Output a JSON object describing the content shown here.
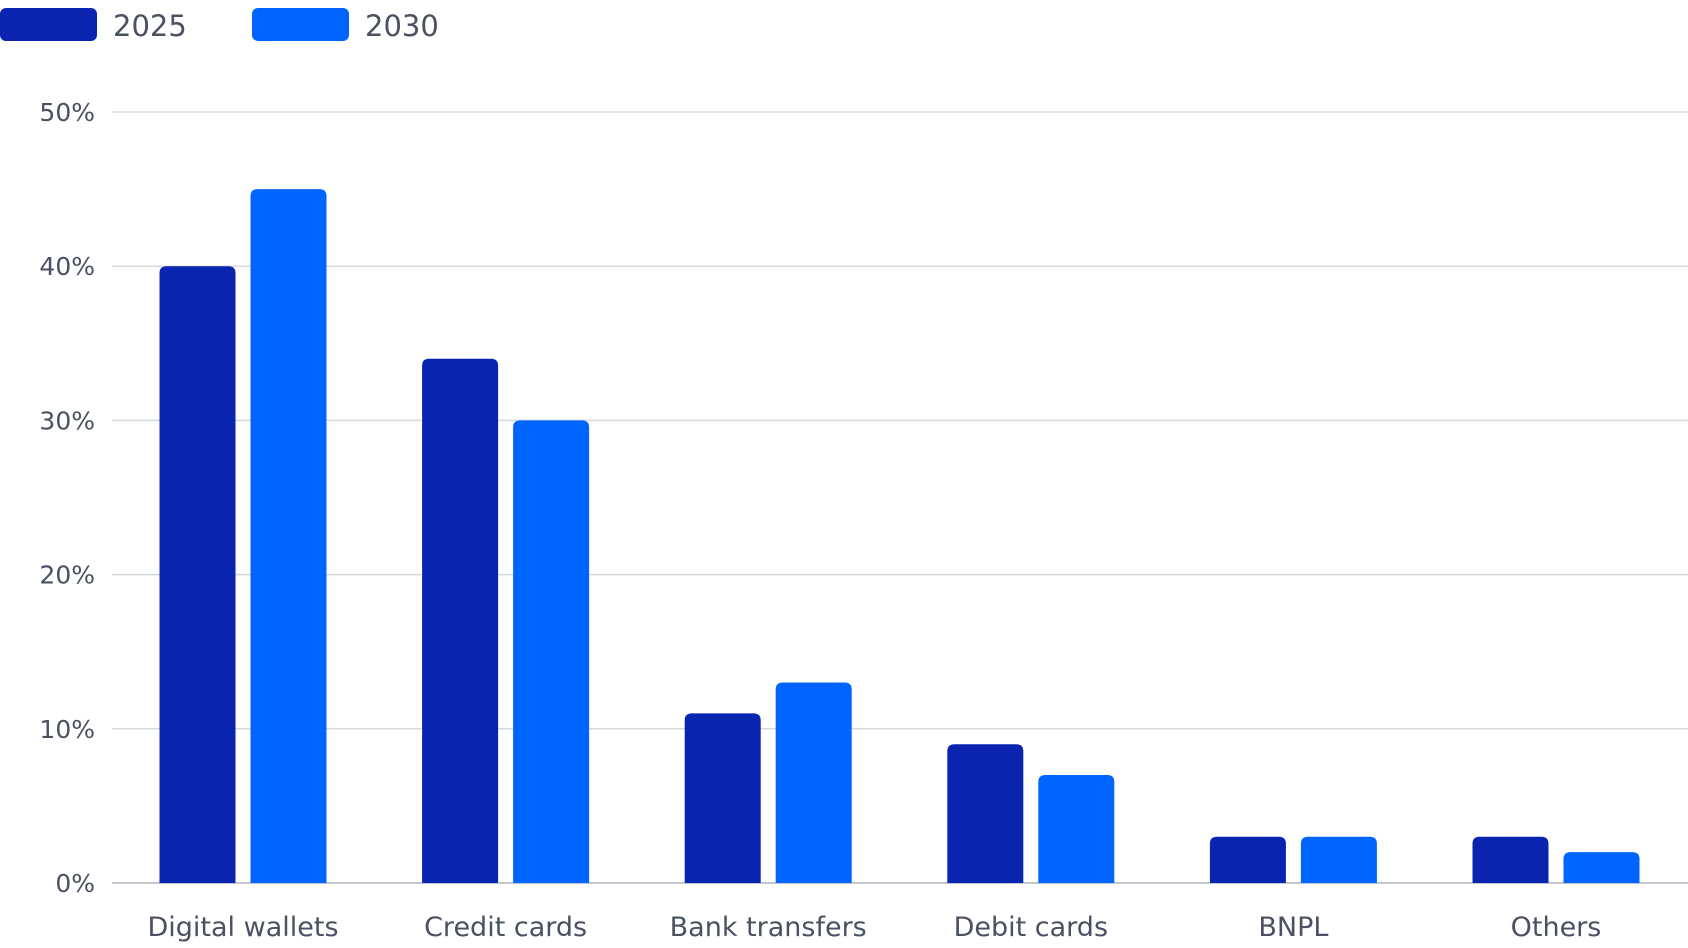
{
  "chart_data": {
    "type": "bar",
    "categories": [
      "Digital wallets",
      "Credit cards",
      "Bank transfers",
      "Debit cards",
      "BNPL",
      "Others"
    ],
    "series": [
      {
        "name": "2025",
        "color": "#0925b0",
        "values": [
          40,
          34,
          11,
          9,
          3,
          3
        ]
      },
      {
        "name": "2030",
        "color": "#0064fe",
        "values": [
          45,
          30,
          13,
          7,
          3,
          2
        ]
      }
    ],
    "y_ticks": [
      0,
      10,
      20,
      30,
      40,
      50
    ],
    "y_tick_labels": [
      "0%",
      "10%",
      "20%",
      "30%",
      "40%",
      "50%"
    ],
    "ylim": [
      0,
      50
    ],
    "grid": true,
    "legend_position": "top-left",
    "title": "",
    "xlabel": "",
    "ylabel": ""
  }
}
